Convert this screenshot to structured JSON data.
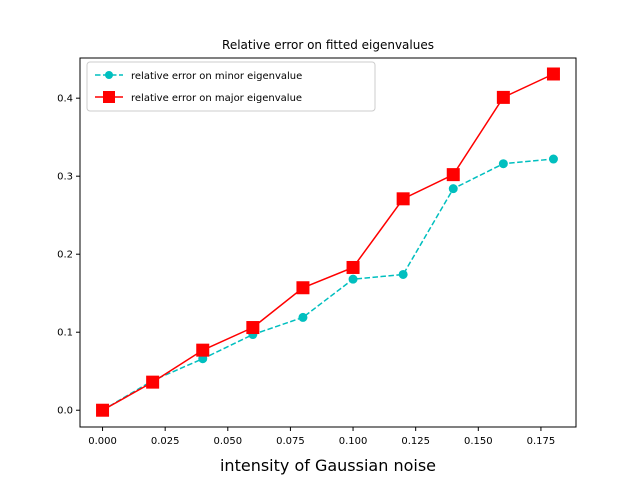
{
  "chart_data": {
    "type": "line",
    "title": "Relative error on fitted eigenvalues",
    "xlabel": "intensity of Gaussian noise",
    "ylabel": "",
    "xlim": [
      -0.009,
      0.189
    ],
    "ylim": [
      -0.0215,
      0.4515
    ],
    "xticks": [
      0.0,
      0.025,
      0.05,
      0.075,
      0.1,
      0.125,
      0.15,
      0.175
    ],
    "xtick_labels": [
      "0.000",
      "0.025",
      "0.050",
      "0.075",
      "0.100",
      "0.125",
      "0.150",
      "0.175"
    ],
    "yticks": [
      0.0,
      0.1,
      0.2,
      0.3,
      0.4
    ],
    "ytick_labels": [
      "0.0",
      "0.1",
      "0.2",
      "0.3",
      "0.4"
    ],
    "grid": false,
    "legend_position": "top-left",
    "x": [
      0.0,
      0.02,
      0.04,
      0.06,
      0.08,
      0.1,
      0.12,
      0.14,
      0.16,
      0.18
    ],
    "series": [
      {
        "name": "relative error on minor eigenvalue",
        "color": "#00bfbf",
        "line_style": "dashed",
        "marker": "circle",
        "values": [
          0.0,
          0.038,
          0.066,
          0.097,
          0.119,
          0.168,
          0.174,
          0.284,
          0.316,
          0.322
        ]
      },
      {
        "name": "relative error on major eigenvalue",
        "color": "#ff0000",
        "line_style": "solid",
        "marker": "square",
        "values": [
          0.0,
          0.036,
          0.077,
          0.106,
          0.157,
          0.183,
          0.271,
          0.302,
          0.401,
          0.431
        ]
      }
    ]
  }
}
